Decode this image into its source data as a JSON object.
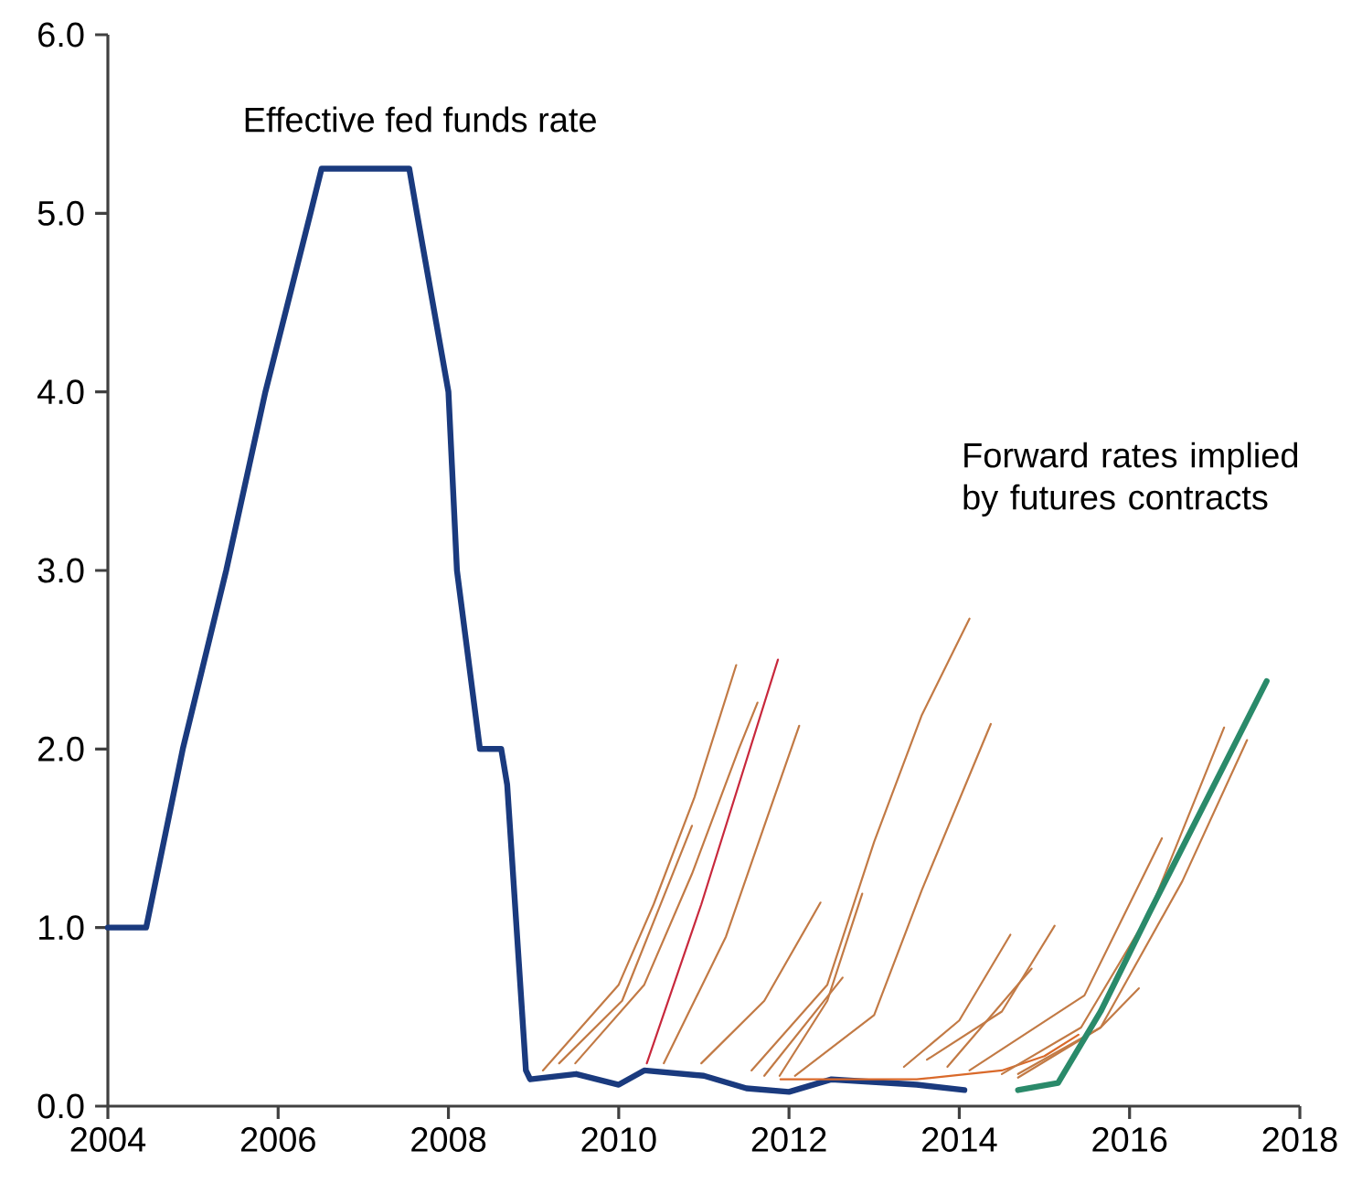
{
  "chart_data": {
    "type": "line",
    "x": [
      2004.0,
      2004.45,
      2004.88,
      2005.39,
      2005.85,
      2006.38,
      2006.51,
      2007.54,
      2007.63,
      2008.0,
      2008.1,
      2008.37,
      2008.62,
      2008.69,
      2008.91,
      2008.96,
      2009.5,
      2010.0,
      2010.3,
      2011.0,
      2011.5,
      2012.0,
      2012.5,
      2013.5,
      2014.06
    ],
    "series": [
      {
        "color": "#1a3a7e",
        "values": [
          1.0,
          1.0,
          2.0,
          3.0,
          4.0,
          5.0,
          5.25,
          5.25,
          5.0,
          4.0,
          3.0,
          2.0,
          2.0,
          1.8,
          0.2,
          0.15,
          0.18,
          0.12,
          0.2,
          0.17,
          0.1,
          0.08,
          0.15,
          0.12,
          0.09
        ]
      },
      {
        "color": "#c27a45",
        "x": [
          2009.11,
          2010.0,
          2010.41,
          2010.89,
          2011.38
        ],
        "values": [
          0.2,
          0.68,
          1.13,
          1.73,
          2.47
        ]
      },
      {
        "color": "#c27a45",
        "x": [
          2009.49,
          2010.3,
          2010.86,
          2011.41,
          2011.63
        ],
        "values": [
          0.24,
          0.68,
          1.3,
          2.0,
          2.26
        ]
      },
      {
        "color": "#c27a45",
        "x": [
          2009.3,
          2010.04,
          2010.86
        ],
        "values": [
          0.24,
          0.59,
          1.57
        ]
      },
      {
        "color": "#c27a45",
        "x": [
          2010.53,
          2011.26,
          2011.71,
          2012.12
        ],
        "values": [
          0.24,
          0.95,
          1.57,
          2.13
        ]
      },
      {
        "color": "#c27a45",
        "x": [
          2010.97,
          2011.71,
          2012.37
        ],
        "values": [
          0.24,
          0.59,
          1.14
        ]
      },
      {
        "color": "#c27a45",
        "x": [
          2011.71,
          2012.63
        ],
        "values": [
          0.17,
          0.72
        ]
      },
      {
        "color": "#c27a45",
        "x": [
          2011.89,
          2012.45,
          2012.86
        ],
        "values": [
          0.17,
          0.59,
          1.19
        ]
      },
      {
        "color": "#c27a45",
        "x": [
          2011.56,
          2012.45,
          2013.0,
          2013.56,
          2014.12
        ],
        "values": [
          0.2,
          0.68,
          1.48,
          2.19,
          2.73
        ]
      },
      {
        "color": "#c27a45",
        "x": [
          2012.07,
          2013.0,
          2013.56,
          2014.37
        ],
        "values": [
          0.17,
          0.51,
          1.21,
          2.14
        ]
      },
      {
        "color": "#d9692a",
        "x": [
          2011.9,
          2012.5,
          2013.5,
          2014.5,
          2015.0,
          2015.4
        ],
        "values": [
          0.15,
          0.15,
          0.15,
          0.2,
          0.28,
          0.4
        ]
      },
      {
        "color": "#c27a45",
        "x": [
          2013.35,
          2014.0,
          2014.6
        ],
        "values": [
          0.22,
          0.48,
          0.96
        ]
      },
      {
        "color": "#c27a45",
        "x": [
          2013.62,
          2014.5,
          2015.12
        ],
        "values": [
          0.26,
          0.53,
          1.01
        ]
      },
      {
        "color": "#c27a45",
        "x": [
          2013.86,
          2014.85
        ],
        "values": [
          0.22,
          0.77
        ]
      },
      {
        "color": "#c27a45",
        "x": [
          2014.12,
          2015.47,
          2016.38
        ],
        "values": [
          0.2,
          0.62,
          1.5
        ]
      },
      {
        "color": "#c27a45",
        "x": [
          2014.5,
          2015.43,
          2016.23,
          2017.11
        ],
        "values": [
          0.18,
          0.44,
          1.08,
          2.12
        ]
      },
      {
        "color": "#c27a45",
        "x": [
          2014.69,
          2015.66,
          2016.62,
          2017.38
        ],
        "values": [
          0.16,
          0.44,
          1.26,
          2.05
        ]
      },
      {
        "color": "#c27a45",
        "x": [
          2014.69,
          2015.66,
          2016.11
        ],
        "values": [
          0.18,
          0.44,
          0.66
        ]
      },
      {
        "color": "#c8283c",
        "x": [
          2010.33,
          2010.97,
          2011.87
        ],
        "values": [
          0.24,
          1.13,
          2.5
        ]
      },
      {
        "color": "#2a8a6a",
        "x": [
          2014.69,
          2015.16,
          2015.66,
          2016.23,
          2017.61
        ],
        "values": [
          0.09,
          0.13,
          0.53,
          1.08,
          2.38
        ]
      }
    ],
    "xlim": [
      2004,
      2018
    ],
    "xticks": [
      2004,
      2006,
      2008,
      2010,
      2012,
      2014,
      2016,
      2018
    ],
    "ylim": [
      0,
      6
    ],
    "yticks": [
      {
        "value": 0,
        "label": "0.0"
      },
      {
        "value": 1,
        "label": "1.0"
      },
      {
        "value": 2,
        "label": "2.0"
      },
      {
        "value": 3,
        "label": "3.0"
      },
      {
        "value": 4,
        "label": "4.0"
      },
      {
        "value": 5,
        "label": "5.0"
      },
      {
        "value": 6,
        "label": "6.0"
      }
    ],
    "annotations": [
      "Effective fed funds rate",
      "Forward rates implied by futures contracts"
    ],
    "marker": "none",
    "line_style": "solid"
  }
}
